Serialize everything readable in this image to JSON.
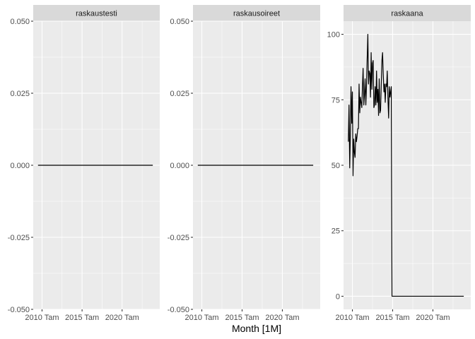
{
  "chart_data": {
    "type": "line",
    "xlabel": "Month [1M]",
    "x_tick_labels": [
      "2010 Tam",
      "2015 Tam",
      "2020 Tam"
    ],
    "x_tick_years": [
      2010,
      2015,
      2020
    ],
    "xlim": [
      2008.9,
      2024.7
    ],
    "grid": true,
    "panels": [
      {
        "title": "raskaustesti",
        "ylim": [
          -0.05,
          0.05
        ],
        "y_ticks": [
          -0.05,
          -0.025,
          0,
          0.025,
          0.05
        ],
        "y_tick_labels": [
          "-0.050",
          "-0.025",
          "0.000",
          "0.025",
          "0.050"
        ],
        "series": [
          {
            "x": [
              2009.5,
              2023.83
            ],
            "y": [
              0,
              0
            ]
          }
        ]
      },
      {
        "title": "raskausoireet",
        "ylim": [
          -0.05,
          0.05
        ],
        "y_ticks": [
          -0.05,
          -0.025,
          0,
          0.025,
          0.05
        ],
        "y_tick_labels": [
          "-0.050",
          "-0.025",
          "0.000",
          "0.025",
          "0.050"
        ],
        "series": [
          {
            "x": [
              2009.5,
              2023.83
            ],
            "y": [
              0,
              0
            ]
          }
        ]
      },
      {
        "title": "raskaana",
        "ylim": [
          -5,
          105
        ],
        "y_ticks": [
          0,
          25,
          50,
          75,
          100
        ],
        "y_tick_labels": [
          "0",
          "25",
          "50",
          "75",
          "100"
        ],
        "series": [
          {
            "x": [
              2009.5,
              2009.58,
              2009.67,
              2009.75,
              2009.83,
              2009.92,
              2010.0,
              2010.08,
              2010.17,
              2010.25,
              2010.33,
              2010.42,
              2010.5,
              2010.58,
              2010.67,
              2010.75,
              2010.83,
              2010.92,
              2011.0,
              2011.08,
              2011.17,
              2011.25,
              2011.33,
              2011.42,
              2011.5,
              2011.58,
              2011.67,
              2011.75,
              2011.83,
              2011.92,
              2012.0,
              2012.08,
              2012.17,
              2012.25,
              2012.33,
              2012.42,
              2012.5,
              2012.58,
              2012.67,
              2012.75,
              2012.83,
              2012.92,
              2013.0,
              2013.08,
              2013.17,
              2013.25,
              2013.33,
              2013.42,
              2013.5,
              2013.58,
              2013.67,
              2013.75,
              2013.83,
              2013.92,
              2014.0,
              2014.08,
              2014.17,
              2014.25,
              2014.33,
              2014.42,
              2014.5,
              2014.58,
              2014.67,
              2014.75,
              2014.83,
              2014.92,
              2015.0,
              2015.08,
              2015.17,
              2015.25,
              2015.33,
              2015.42,
              2015.5,
              2015.58,
              2015.67,
              2015.75,
              2015.83,
              2015.92,
              2016.0,
              2016.08,
              2016.17,
              2016.25,
              2016.33,
              2016.42,
              2016.5,
              2016.58,
              2016.67,
              2016.75,
              2016.83,
              2016.92,
              2017.0,
              2017.08,
              2017.17,
              2017.25,
              2017.33,
              2017.42,
              2017.5,
              2017.58,
              2017.67,
              2018.0,
              2019.0,
              2020.0,
              2021.0,
              2022.0,
              2023.0,
              2023.83
            ],
            "y": [
              59,
              73,
              49,
              62,
              80,
              66,
              78,
              46,
              60,
              55,
              53,
              62,
              59,
              61,
              64,
              64,
              81,
              70,
              76,
              74,
              72,
              80,
              87,
              73,
              77,
              83,
              73,
              80,
              90,
              100,
              81,
              86,
              85,
              76,
              93,
              79,
              89,
              90,
              72,
              73,
              80,
              73,
              86,
              74,
              79,
              69,
              83,
              70,
              71,
              80,
              90,
              93,
              85,
              78,
              81,
              74,
              81,
              80,
              86,
              75,
              68,
              80,
              76,
              78,
              80,
              0,
              0,
              0,
              0,
              0,
              0,
              0,
              0,
              0,
              0,
              0,
              0,
              0,
              0,
              0,
              0,
              0,
              0,
              0,
              0,
              0,
              0,
              0,
              0,
              0,
              0,
              0,
              0,
              0,
              0,
              0,
              0,
              0,
              0,
              0,
              0,
              0,
              0,
              0,
              0,
              0
            ]
          }
        ]
      }
    ]
  }
}
